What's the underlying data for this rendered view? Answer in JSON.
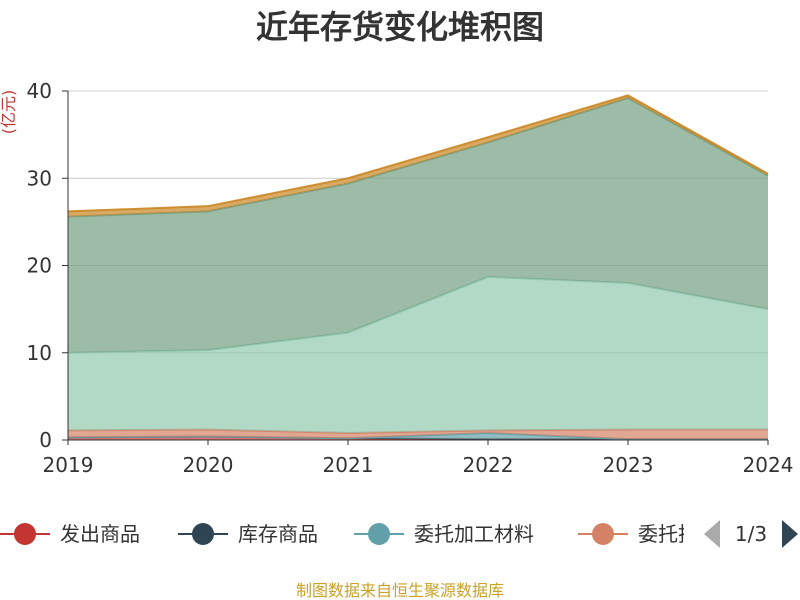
{
  "chart_data": {
    "type": "area",
    "stacked": true,
    "title": "近年存货变化堆积图",
    "ylabel": "(亿元)",
    "categories": [
      "2019",
      "2020",
      "2021",
      "2022",
      "2023",
      "2024"
    ],
    "ylim": [
      0,
      40
    ],
    "yticks": [
      0,
      10,
      20,
      30,
      40
    ],
    "grid": true,
    "series": [
      {
        "name": "发出商品",
        "color": "#c23531",
        "values": [
          0.3,
          0.4,
          0.2,
          0.1,
          0.1,
          0.1
        ]
      },
      {
        "name": "库存商品",
        "color": "#2f4554",
        "values": [
          0.0,
          0.0,
          0.0,
          0.0,
          0.0,
          0.0
        ]
      },
      {
        "name": "委托加工材料",
        "color": "#61a0a8",
        "values": [
          0.0,
          0.0,
          0.0,
          0.7,
          0.0,
          0.0
        ]
      },
      {
        "name": "委托",
        "color": "#d48265",
        "values": [
          0.8,
          0.8,
          0.6,
          0.3,
          1.1,
          1.1
        ]
      },
      {
        "name": "",
        "color": "#91c7ae",
        "values": [
          8.9,
          9.1,
          11.5,
          17.6,
          16.8,
          13.8
        ]
      },
      {
        "name": "",
        "color": "#749f83",
        "values": [
          15.6,
          15.9,
          17.1,
          15.4,
          21.2,
          15.3
        ]
      },
      {
        "name": "",
        "color": "#ca8622",
        "values": [
          0.6,
          0.6,
          0.6,
          0.6,
          0.3,
          0.2
        ]
      }
    ],
    "legend": {
      "position": "bottom",
      "visible_items": [
        "发出商品",
        "库存商品",
        "委托加工材料",
        "委托托"
      ],
      "page": "1/3"
    },
    "source": "制图数据来自恒生聚源数据库"
  }
}
